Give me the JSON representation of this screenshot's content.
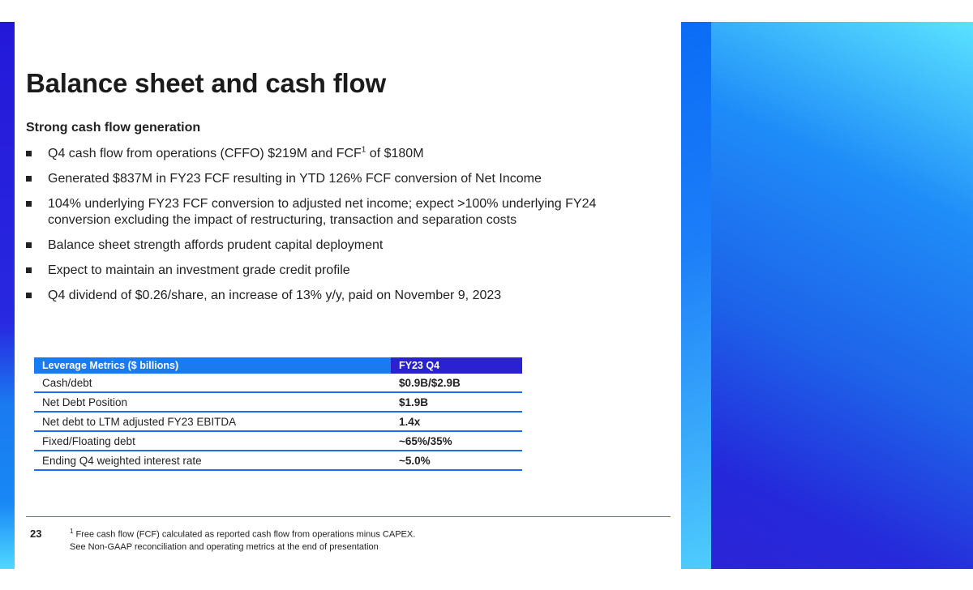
{
  "slide": {
    "title": "Balance sheet and cash flow",
    "subtitle": "Strong cash flow generation",
    "bullets": [
      {
        "text": "Q4 cash flow from operations (CFFO) $219M and FCF",
        "sup": "1",
        "text_after": " of $180M"
      },
      {
        "text": "Generated $837M in FY23 FCF resulting in YTD 126% FCF conversion of Net Income"
      },
      {
        "text": "104% underlying FY23 FCF conversion to adjusted net income; expect >100% underlying FY24 conversion excluding the impact of restructuring, transaction and separation costs"
      },
      {
        "text": "Balance sheet strength affords prudent capital deployment"
      },
      {
        "text": "Expect to maintain an investment grade credit profile"
      },
      {
        "text": "Q4 dividend of $0.26/share, an increase of 13% y/y, paid on November 9, 2023"
      }
    ]
  },
  "table": {
    "headers": [
      "Leverage Metrics ($ billions)",
      "FY23 Q4"
    ],
    "rows": [
      [
        "Cash/debt",
        "$0.9B/$2.9B"
      ],
      [
        "Net Debt Position",
        "$1.9B"
      ],
      [
        "Net debt to LTM adjusted FY23 EBITDA",
        "1.4x"
      ],
      [
        "Fixed/Floating debt",
        "~65%/35%"
      ],
      [
        "Ending Q4 weighted interest rate",
        "~5.0%"
      ]
    ]
  },
  "footer": {
    "page_number": "23",
    "footnote_sup": "1",
    "footnote_line1": " Free cash flow (FCF) calculated as reported cash flow from operations minus CAPEX.",
    "footnote_line2": "See Non-GAAP reconciliation and operating metrics at the end of presentation"
  },
  "colors": {
    "accent_blue": "#1a7af0",
    "accent_indigo": "#2a22d0",
    "cyan": "#5ce6ff"
  }
}
